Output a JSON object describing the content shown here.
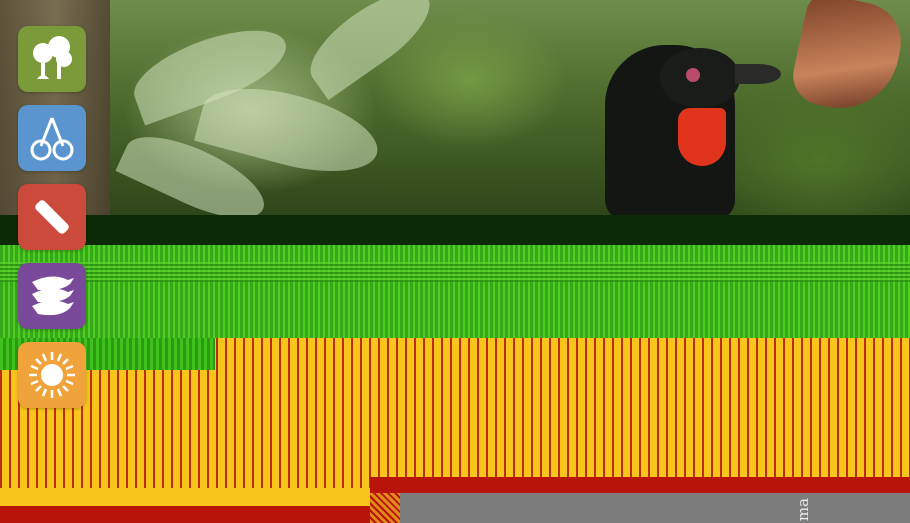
{
  "background": {
    "colors": {
      "photo_top": "#6f8d4a",
      "dark_band": "#0b2a05",
      "green_band": "#4fcf22",
      "yellow_band": "#f7c51c",
      "red_band": "#b8140a",
      "gray_band": "#7c7c7c"
    },
    "footer_label": "ma"
  },
  "nav": {
    "items": [
      {
        "icon": "trees-icon",
        "color": "#7b9a3a"
      },
      {
        "icon": "cherries-icon",
        "color": "#5b95cf"
      },
      {
        "icon": "bandage-icon",
        "color": "#cc4a3c"
      },
      {
        "icon": "birds-icon",
        "color": "#7a4a9a"
      },
      {
        "icon": "sun-icon",
        "color": "#f0a33a"
      }
    ]
  }
}
